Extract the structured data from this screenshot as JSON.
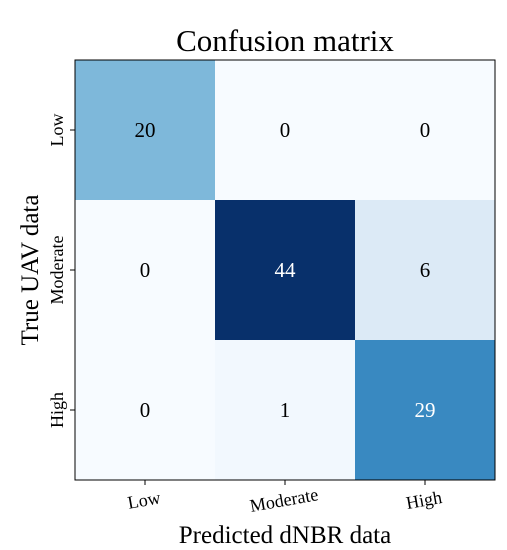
{
  "chart_data": {
    "type": "heatmap",
    "title": "Confusion matrix",
    "xlabel": "Predicted dNBR data",
    "ylabel": "True UAV data",
    "x_categories": [
      "Low",
      "Moderate",
      "High"
    ],
    "y_categories": [
      "Low",
      "Moderate",
      "High"
    ],
    "values": [
      [
        20,
        0,
        0
      ],
      [
        0,
        44,
        6
      ],
      [
        0,
        1,
        29
      ]
    ],
    "colormap": "Blues",
    "value_range": [
      0,
      44
    ],
    "grid": false,
    "legend": "none"
  }
}
